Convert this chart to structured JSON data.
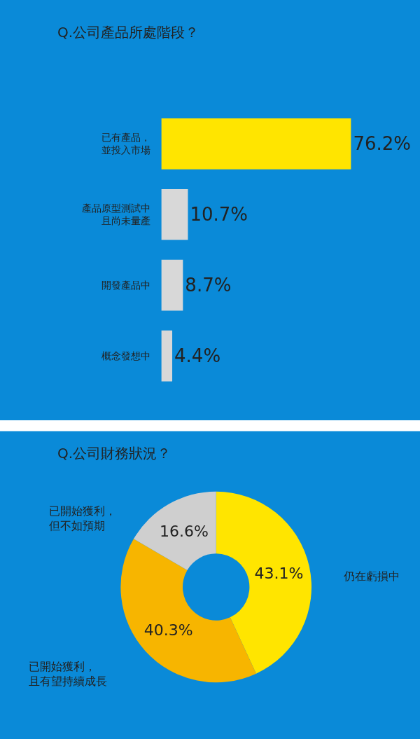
{
  "chart_data": [
    {
      "type": "bar",
      "orientation": "horizontal",
      "title": "Q.公司產品所處階段？",
      "categories": [
        "已有產品，並投入市場",
        "產品原型測試中且尚未量產",
        "開發產品中",
        "概念發想中"
      ],
      "values": [
        76.2,
        10.7,
        8.7,
        4.4
      ],
      "colors": [
        "#ffe500",
        "#d8d8d8",
        "#d8d8d8",
        "#d8d8d8"
      ],
      "value_labels": [
        "76.2%",
        "10.7%",
        "8.7%",
        "4.4%"
      ]
    },
    {
      "type": "donut",
      "title": "Q.公司財務狀況？",
      "categories": [
        "仍在虧損中",
        "已開始獲利，且有望持續成長",
        "已開始獲利，但不如預期"
      ],
      "values": [
        43.1,
        40.3,
        16.6
      ],
      "colors": [
        "#ffe500",
        "#f7b500",
        "#cfcfcf"
      ],
      "value_labels": [
        "43.1%",
        "40.3%",
        "16.6%"
      ]
    }
  ]
}
